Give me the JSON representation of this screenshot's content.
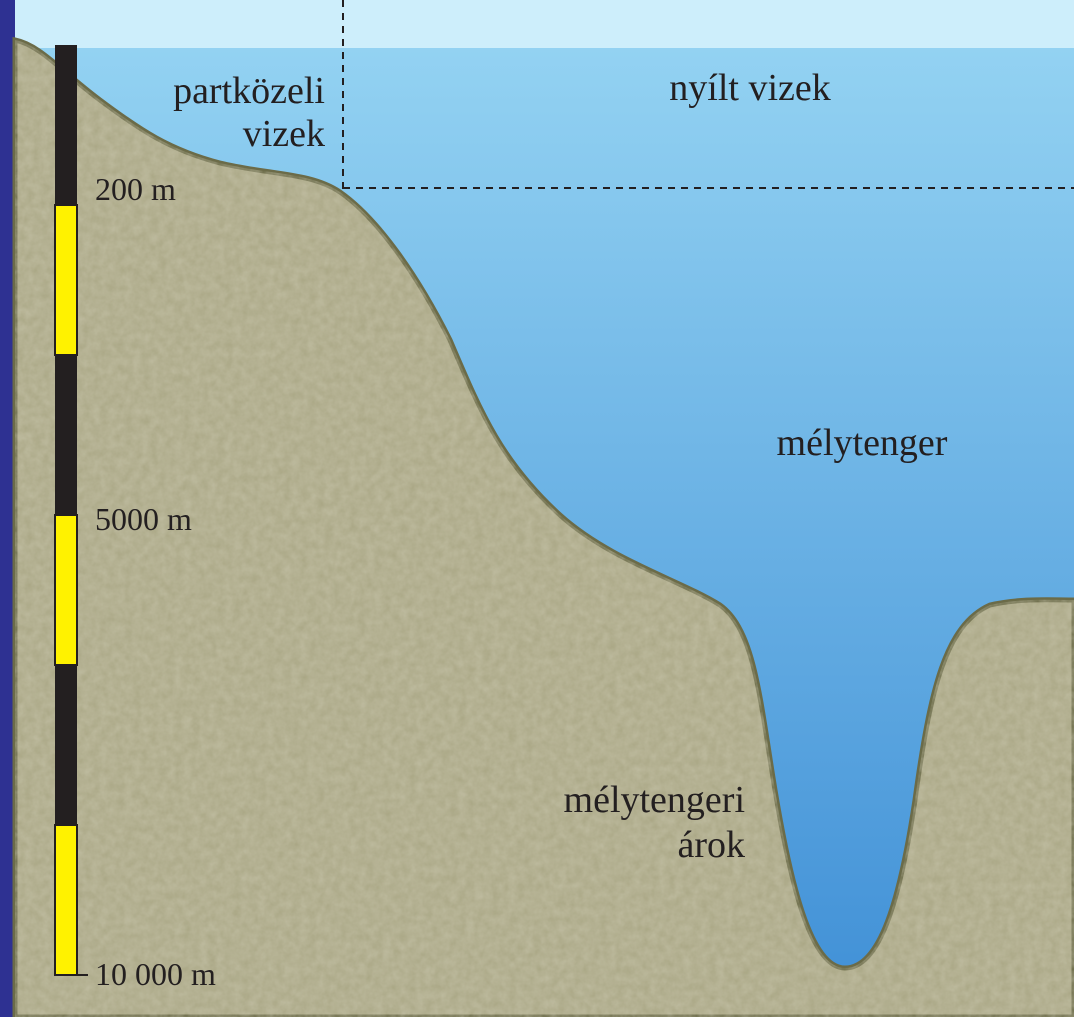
{
  "zones": {
    "coastal": {
      "line1": "partközeli",
      "line2": "vizek"
    },
    "open": "nyílt vizek",
    "deep": "mélytenger",
    "trench": {
      "line1": "mélytengeri",
      "line2": "árok"
    }
  },
  "depth_scale": [
    "200 m",
    "5000 m",
    "10 000 m"
  ]
}
